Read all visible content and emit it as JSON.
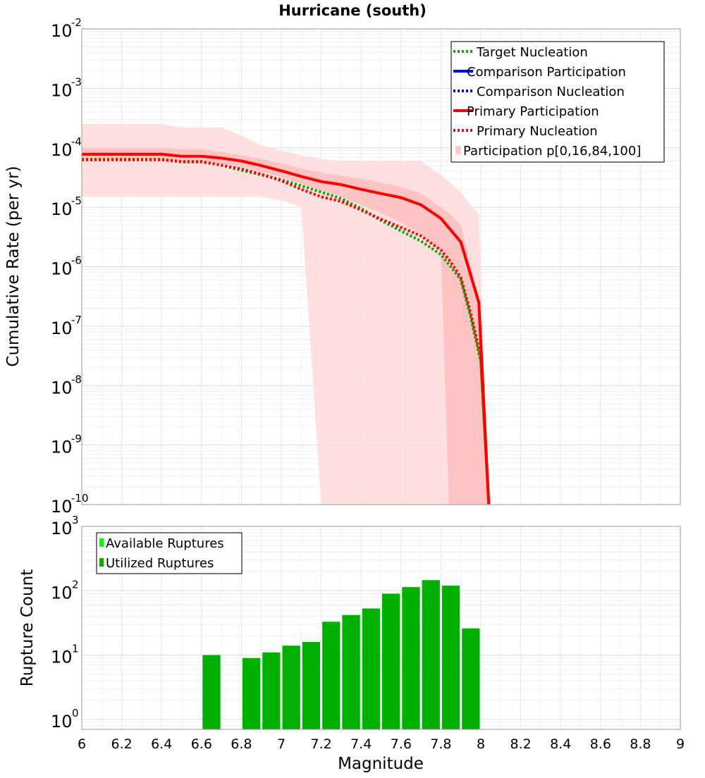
{
  "chart_data": [
    {
      "type": "line",
      "title": "Hurricane (south)",
      "xlabel": "",
      "ylabel": "Cumulative Rate (per yr)",
      "xlim": [
        6,
        9
      ],
      "ylim": [
        1e-10,
        0.01
      ],
      "yscale": "log",
      "grid": true,
      "legend_position": "top-right",
      "y_ticks": [
        {
          "base": "10",
          "exp": "-2"
        },
        {
          "base": "10",
          "exp": "-3"
        },
        {
          "base": "10",
          "exp": "-4"
        },
        {
          "base": "10",
          "exp": "-5"
        },
        {
          "base": "10",
          "exp": "-6"
        },
        {
          "base": "10",
          "exp": "-7"
        },
        {
          "base": "10",
          "exp": "-8"
        },
        {
          "base": "10",
          "exp": "-9"
        },
        {
          "base": "10",
          "exp": "-10"
        }
      ],
      "legend": [
        {
          "label": "Target Nucleation",
          "color": "#00aa00",
          "style": "dotted"
        },
        {
          "label": "Comparison Participation",
          "color": "#0000ff",
          "style": "solid"
        },
        {
          "label": "Comparison Nucleation",
          "color": "#0000ff",
          "style": "dotted"
        },
        {
          "label": "Primary Participation",
          "color": "#ff0000",
          "style": "solid"
        },
        {
          "label": "Primary Nucleation",
          "color": "#ff0000",
          "style": "dotted"
        },
        {
          "label": "Participation p[0,16,84,100]",
          "color": "#ffc8c8",
          "style": "fill"
        }
      ],
      "series": [
        {
          "name": "Primary Participation",
          "color": "#ff0000",
          "style": "solid",
          "x": [
            6.0,
            6.1,
            6.2,
            6.3,
            6.4,
            6.5,
            6.6,
            6.7,
            6.8,
            6.9,
            7.0,
            7.1,
            7.2,
            7.3,
            7.4,
            7.5,
            7.6,
            7.7,
            7.8,
            7.9,
            7.99,
            8.04
          ],
          "y": [
            7.8e-05,
            7.8e-05,
            7.8e-05,
            7.8e-05,
            7.8e-05,
            7.2e-05,
            7.2e-05,
            6.7e-05,
            6e-05,
            5e-05,
            4.1e-05,
            3.3e-05,
            2.7e-05,
            2.4e-05,
            2e-05,
            1.7e-05,
            1.45e-05,
            1.1e-05,
            6.5e-06,
            2.6e-06,
            2.5e-07,
            1e-10
          ]
        },
        {
          "name": "Primary Nucleation",
          "color": "#ff0000",
          "style": "dotted",
          "x": [
            6.0,
            6.1,
            6.2,
            6.3,
            6.4,
            6.5,
            6.6,
            6.7,
            6.8,
            6.9,
            7.0,
            7.1,
            7.2,
            7.3,
            7.4,
            7.5,
            7.6,
            7.7,
            7.8,
            7.85,
            7.9,
            7.95,
            8.0,
            8.04
          ],
          "y": [
            6.3e-05,
            6.3e-05,
            6.3e-05,
            6.3e-05,
            6.3e-05,
            5.8e-05,
            5.8e-05,
            5.1e-05,
            4.4e-05,
            3.6e-05,
            2.8e-05,
            2e-05,
            1.5e-05,
            1.25e-05,
            9e-06,
            6.3e-06,
            4.6e-06,
            3.3e-06,
            1.9e-06,
            1.2e-06,
            6.5e-07,
            1.6e-07,
            3e-08,
            1e-10
          ]
        },
        {
          "name": "Target Nucleation",
          "color": "#00aa00",
          "style": "dotted",
          "x": [
            6.0,
            6.1,
            6.2,
            6.3,
            6.4,
            6.5,
            6.6,
            6.7,
            6.8,
            6.9,
            7.0,
            7.1,
            7.2,
            7.3,
            7.4,
            7.5,
            7.6,
            7.7,
            7.8,
            7.85,
            7.9,
            7.95,
            8.0,
            8.04
          ],
          "y": [
            6.4e-05,
            6.4e-05,
            6.4e-05,
            6.4e-05,
            6.4e-05,
            5.9e-05,
            5.9e-05,
            5.1e-05,
            4.2e-05,
            3.5e-05,
            2.9e-05,
            2.3e-05,
            1.8e-05,
            1.4e-05,
            9.5e-06,
            6e-06,
            4e-06,
            2.7e-06,
            1.6e-06,
            1e-06,
            6e-07,
            1.4e-07,
            2.5e-08,
            1e-10
          ]
        }
      ],
      "bands": [
        {
          "name": "p0-p100",
          "color": "#ffdada",
          "x": [
            6.0,
            6.1,
            6.2,
            6.3,
            6.4,
            6.5,
            6.6,
            6.7,
            6.8,
            6.9,
            7.0,
            7.1,
            7.2,
            7.25,
            7.3,
            7.4,
            7.5,
            7.6,
            7.7,
            7.8,
            7.9,
            7.94,
            7.99,
            8.04
          ],
          "upper": [
            0.00025,
            0.00025,
            0.00025,
            0.00025,
            0.00025,
            0.00022,
            0.00022,
            0.00022,
            0.00016,
            0.00011,
            9e-05,
            7.5e-05,
            6.5e-05,
            6.2e-05,
            6e-05,
            6e-05,
            6e-05,
            6e-05,
            6e-05,
            3.5e-05,
            1.8e-05,
            1.2e-05,
            7.5e-06,
            1e-10
          ],
          "lower": [
            1.5e-05,
            1.5e-05,
            1.5e-05,
            1.5e-05,
            1.5e-05,
            1.5e-05,
            1.5e-05,
            1.5e-05,
            1.5e-05,
            1.5e-05,
            1.3e-05,
            1e-05,
            1e-10,
            1e-10,
            1e-10,
            1e-10,
            1e-10,
            1e-10,
            1e-10,
            1e-10,
            1e-10,
            1e-10,
            1e-10,
            1e-10
          ]
        },
        {
          "name": "p16-p84",
          "color": "#ffbaba",
          "x": [
            6.0,
            6.1,
            6.2,
            6.3,
            6.4,
            6.5,
            6.6,
            6.7,
            6.8,
            6.9,
            7.0,
            7.1,
            7.2,
            7.3,
            7.4,
            7.5,
            7.6,
            7.7,
            7.8,
            7.84,
            7.9,
            7.94,
            7.99,
            8.04
          ],
          "upper": [
            0.0001,
            0.0001,
            0.0001,
            0.0001,
            0.0001,
            9.5e-05,
            9.5e-05,
            8.5e-05,
            7.5e-05,
            6.5e-05,
            5.5e-05,
            4.5e-05,
            3.8e-05,
            3.4e-05,
            3e-05,
            2.6e-05,
            2.2e-05,
            1.7e-05,
            1e-05,
            8e-06,
            5e-06,
            1.5e-06,
            3e-07,
            1e-10
          ],
          "lower": [
            6.5e-05,
            6.5e-05,
            6.5e-05,
            6.5e-05,
            6.5e-05,
            6e-05,
            6e-05,
            5.5e-05,
            4.8e-05,
            4e-05,
            3.2e-05,
            2.5e-05,
            1.9e-05,
            1.5e-05,
            1.1e-05,
            8e-06,
            5.5e-06,
            3.5e-06,
            1.8e-06,
            1e-10,
            1e-10,
            1e-10,
            1e-10,
            1e-10
          ]
        }
      ]
    },
    {
      "type": "bar",
      "title": "",
      "xlabel": "Magnitude",
      "ylabel": "Rupture Count",
      "xlim": [
        6,
        9
      ],
      "ylim": [
        0.7,
        1000
      ],
      "yscale": "log",
      "grid": true,
      "legend_position": "top-left",
      "x_tick_labels": [
        "6",
        "6.2",
        "6.4",
        "6.6",
        "6.8",
        "7",
        "7.2",
        "7.4",
        "7.6",
        "7.8",
        "8",
        "8.2",
        "8.4",
        "8.6",
        "8.8",
        "9"
      ],
      "y_ticks": [
        {
          "base": "10",
          "exp": "3"
        },
        {
          "base": "10",
          "exp": "2"
        },
        {
          "base": "10",
          "exp": "1"
        },
        {
          "base": "10",
          "exp": "0"
        }
      ],
      "legend": [
        {
          "label": "Available Ruptures",
          "color": "#00ff00"
        },
        {
          "label": "Utilized Ruptures",
          "color": "#00b000"
        }
      ],
      "series": [
        {
          "name": "Utilized Ruptures",
          "color": "#00b000",
          "bin_width": 0.1,
          "bins": [
            6.6,
            6.8,
            6.9,
            7.0,
            7.1,
            7.2,
            7.3,
            7.4,
            7.5,
            7.6,
            7.7,
            7.8,
            7.9
          ],
          "values": [
            10,
            9,
            11,
            14,
            16,
            33,
            42,
            53,
            90,
            114,
            146,
            120,
            26
          ]
        }
      ]
    }
  ]
}
